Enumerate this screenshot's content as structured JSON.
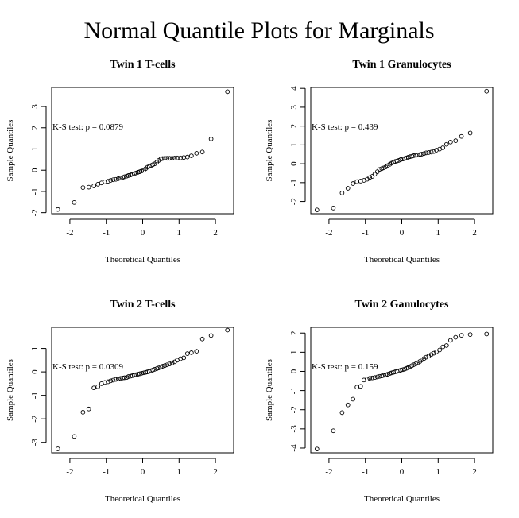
{
  "figure": {
    "title": "Normal Quantile Plots for Marginals"
  },
  "chart_data": [
    {
      "type": "scatter",
      "title": "Twin 1 T-cells",
      "xlabel": "Theoretical Quantiles",
      "ylabel": "Sample Quantiles",
      "annotation": "K-S test: p =  0.0879",
      "xlim": [
        -2.5,
        2.5
      ],
      "ylim": [
        -2.05,
        3.9
      ],
      "xticks": [
        -2,
        -1,
        0,
        1,
        2
      ],
      "yticks": [
        -2,
        -1,
        0,
        1,
        2,
        3
      ],
      "x": [
        -2.33,
        -1.88,
        -1.64,
        -1.48,
        -1.34,
        -1.23,
        -1.13,
        -1.04,
        -0.95,
        -0.88,
        -0.81,
        -0.74,
        -0.67,
        -0.61,
        -0.55,
        -0.5,
        -0.44,
        -0.39,
        -0.33,
        -0.28,
        -0.23,
        -0.18,
        -0.13,
        -0.08,
        -0.03,
        0.03,
        0.08,
        0.13,
        0.18,
        0.23,
        0.28,
        0.33,
        0.39,
        0.44,
        0.5,
        0.55,
        0.61,
        0.67,
        0.74,
        0.81,
        0.88,
        0.95,
        1.04,
        1.13,
        1.23,
        1.34,
        1.48,
        1.64,
        1.88,
        2.33
      ],
      "y": [
        -1.85,
        -1.52,
        -0.82,
        -0.8,
        -0.74,
        -0.66,
        -0.6,
        -0.55,
        -0.52,
        -0.48,
        -0.45,
        -0.43,
        -0.4,
        -0.37,
        -0.34,
        -0.31,
        -0.28,
        -0.25,
        -0.22,
        -0.19,
        -0.16,
        -0.13,
        -0.1,
        -0.07,
        -0.04,
        0.0,
        0.07,
        0.14,
        0.18,
        0.22,
        0.26,
        0.3,
        0.38,
        0.46,
        0.53,
        0.55,
        0.56,
        0.56,
        0.56,
        0.56,
        0.57,
        0.58,
        0.58,
        0.6,
        0.62,
        0.68,
        0.8,
        0.86,
        1.47,
        3.7
      ]
    },
    {
      "type": "scatter",
      "title": "Twin 1 Granulocytes",
      "xlabel": "Theoretical Quantiles",
      "ylabel": "Sample Quantiles",
      "annotation": "K-S test: p =  0.439",
      "xlim": [
        -2.5,
        2.5
      ],
      "ylim": [
        -2.65,
        4.05
      ],
      "xticks": [
        -2,
        -1,
        0,
        1,
        2
      ],
      "yticks": [
        -2,
        -1,
        0,
        1,
        2,
        3,
        4
      ],
      "x": [
        -2.33,
        -1.88,
        -1.64,
        -1.48,
        -1.34,
        -1.23,
        -1.13,
        -1.04,
        -0.95,
        -0.88,
        -0.81,
        -0.74,
        -0.67,
        -0.61,
        -0.55,
        -0.5,
        -0.44,
        -0.39,
        -0.33,
        -0.28,
        -0.23,
        -0.18,
        -0.13,
        -0.08,
        -0.03,
        0.03,
        0.08,
        0.13,
        0.18,
        0.23,
        0.28,
        0.33,
        0.39,
        0.44,
        0.5,
        0.55,
        0.61,
        0.67,
        0.74,
        0.81,
        0.88,
        0.95,
        1.04,
        1.13,
        1.23,
        1.34,
        1.48,
        1.64,
        1.88,
        2.33
      ],
      "y": [
        -2.45,
        -2.35,
        -1.55,
        -1.3,
        -1.05,
        -0.95,
        -0.92,
        -0.88,
        -0.82,
        -0.73,
        -0.67,
        -0.55,
        -0.42,
        -0.3,
        -0.26,
        -0.22,
        -0.17,
        -0.1,
        -0.03,
        0.03,
        0.08,
        0.12,
        0.15,
        0.18,
        0.22,
        0.25,
        0.28,
        0.31,
        0.35,
        0.38,
        0.4,
        0.43,
        0.45,
        0.47,
        0.49,
        0.51,
        0.54,
        0.58,
        0.6,
        0.62,
        0.65,
        0.72,
        0.78,
        0.85,
        1.03,
        1.15,
        1.22,
        1.45,
        1.63,
        3.85
      ]
    },
    {
      "type": "scatter",
      "title": "Twin 2 T-cells",
      "xlabel": "Theoretical Quantiles",
      "ylabel": "Sample Quantiles",
      "annotation": "K-S test: p =  0.0309",
      "xlim": [
        -2.5,
        2.5
      ],
      "ylim": [
        -3.45,
        1.9
      ],
      "xticks": [
        -2,
        -1,
        0,
        1,
        2
      ],
      "yticks": [
        -3,
        -2,
        -1,
        0,
        1
      ],
      "x": [
        -2.33,
        -1.88,
        -1.64,
        -1.48,
        -1.34,
        -1.23,
        -1.13,
        -1.04,
        -0.95,
        -0.88,
        -0.81,
        -0.74,
        -0.67,
        -0.61,
        -0.55,
        -0.5,
        -0.44,
        -0.39,
        -0.33,
        -0.28,
        -0.23,
        -0.18,
        -0.13,
        -0.08,
        -0.03,
        0.03,
        0.08,
        0.13,
        0.18,
        0.23,
        0.28,
        0.33,
        0.39,
        0.44,
        0.5,
        0.55,
        0.61,
        0.67,
        0.74,
        0.81,
        0.88,
        0.95,
        1.04,
        1.13,
        1.23,
        1.34,
        1.48,
        1.64,
        1.88,
        2.33
      ],
      "y": [
        -3.28,
        -2.75,
        -1.72,
        -1.58,
        -0.68,
        -0.63,
        -0.5,
        -0.45,
        -0.42,
        -0.38,
        -0.35,
        -0.32,
        -0.3,
        -0.28,
        -0.26,
        -0.25,
        -0.24,
        -0.2,
        -0.18,
        -0.16,
        -0.14,
        -0.12,
        -0.1,
        -0.08,
        -0.06,
        -0.04,
        -0.02,
        0.0,
        0.02,
        0.05,
        0.08,
        0.11,
        0.14,
        0.17,
        0.2,
        0.24,
        0.27,
        0.3,
        0.34,
        0.38,
        0.43,
        0.5,
        0.56,
        0.6,
        0.78,
        0.82,
        0.88,
        1.4,
        1.55,
        1.78
      ]
    },
    {
      "type": "scatter",
      "title": "Twin 2 Ganulocytes",
      "xlabel": "Theoretical Quantiles",
      "ylabel": "Sample Quantiles",
      "annotation": "K-S test: p =  0.159",
      "xlim": [
        -2.5,
        2.5
      ],
      "ylim": [
        -4.25,
        2.3
      ],
      "xticks": [
        -2,
        -1,
        0,
        1,
        2
      ],
      "yticks": [
        -4,
        -3,
        -2,
        -1,
        0,
        1,
        2
      ],
      "x": [
        -2.33,
        -1.88,
        -1.64,
        -1.48,
        -1.34,
        -1.23,
        -1.13,
        -1.04,
        -0.95,
        -0.88,
        -0.81,
        -0.74,
        -0.67,
        -0.61,
        -0.55,
        -0.5,
        -0.44,
        -0.39,
        -0.33,
        -0.28,
        -0.23,
        -0.18,
        -0.13,
        -0.08,
        -0.03,
        0.03,
        0.08,
        0.13,
        0.18,
        0.23,
        0.28,
        0.33,
        0.39,
        0.44,
        0.5,
        0.55,
        0.61,
        0.67,
        0.74,
        0.81,
        0.88,
        0.95,
        1.04,
        1.13,
        1.23,
        1.34,
        1.48,
        1.64,
        1.88,
        2.33
      ],
      "y": [
        -4.05,
        -3.1,
        -2.15,
        -1.75,
        -1.45,
        -0.82,
        -0.78,
        -0.45,
        -0.4,
        -0.36,
        -0.34,
        -0.32,
        -0.29,
        -0.26,
        -0.24,
        -0.21,
        -0.18,
        -0.15,
        -0.11,
        -0.08,
        -0.05,
        -0.02,
        0.0,
        0.03,
        0.06,
        0.09,
        0.12,
        0.16,
        0.2,
        0.25,
        0.3,
        0.35,
        0.4,
        0.45,
        0.52,
        0.6,
        0.67,
        0.74,
        0.8,
        0.88,
        0.95,
        1.02,
        1.12,
        1.28,
        1.35,
        1.62,
        1.78,
        1.88,
        1.92,
        1.95
      ]
    }
  ]
}
